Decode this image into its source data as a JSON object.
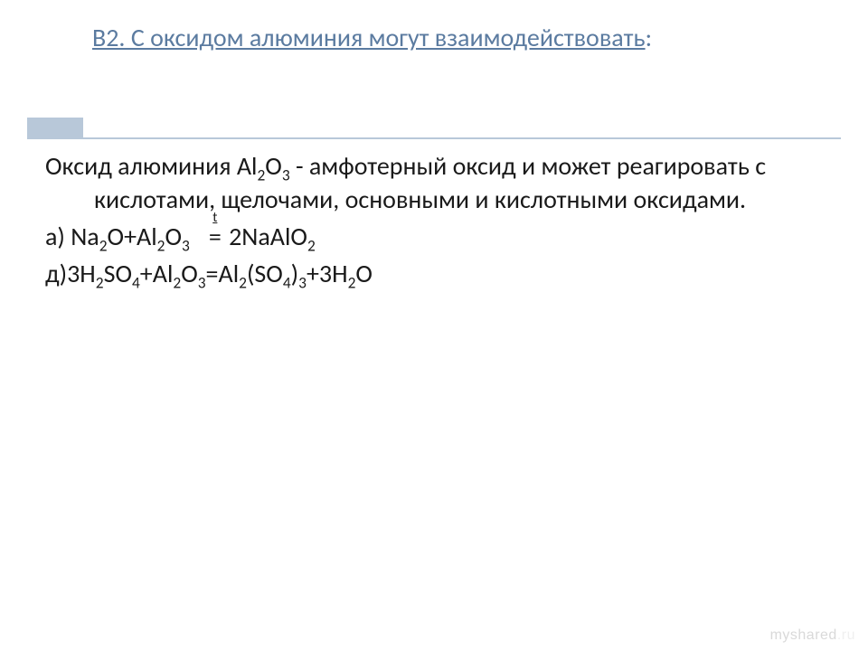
{
  "colors": {
    "title": "#5b7ba0",
    "accent": "#b8c8d9",
    "body": "#1a1a1a",
    "background": "#ffffff",
    "watermark_dark": "#d9d9d9",
    "watermark_light": "#f0f0f0"
  },
  "typography": {
    "title_fontsize": 28,
    "body_fontsize": 28,
    "font_family": "Calibri"
  },
  "title": {
    "underlined": "В2. С оксидом алюминия могут взаимодействовать",
    "tail": ":"
  },
  "body": {
    "p1_lead": "Оксид алюминия  Al",
    "p1_after_formula": " -  амфотерный оксид  и может реагировать с кислотами, щелочами, основными и кислотными оксидами.",
    "eq_a_prefix": "а) Na",
    "eq_a_mid1": "O+Al",
    "eq_a_mid2": "O",
    "eq_a_arrow": "=",
    "eq_a_rhs1": "  2NaAlO",
    "eq_d_prefix": "д)3H",
    "eq_d_s1": "SO",
    "eq_d_s2": "+Al",
    "eq_d_s3": "O",
    "eq_d_eq": "=Al",
    "eq_d_s4": "(SO",
    "eq_d_s5": ")",
    "eq_d_s6": "+3H",
    "eq_d_s7": "O",
    "sub2": "2",
    "sub3": "3",
    "sub4": "4",
    "t_symbol": "t"
  },
  "watermark": {
    "a": "myshared",
    "b": ".ru"
  }
}
